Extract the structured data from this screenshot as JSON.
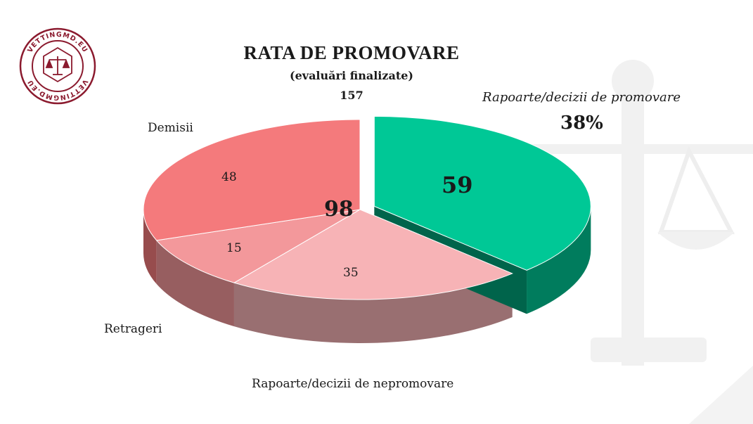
{
  "logo": {
    "ring_text": "VETTINGMD.EU",
    "color": "#8b1a2e"
  },
  "header": {
    "title": "RATA DE PROMOVARE",
    "subtitle": "(evaluări finalizate)",
    "total": "157"
  },
  "labels": {
    "promovare": "Rapoarte/decizii de promovare",
    "promovare_pct": "38%",
    "demisii": "Demisii",
    "retrageri": "Retrageri",
    "nepromovare": "Rapoarte/decizii de nepromovare",
    "nepromovare_total": "98"
  },
  "chart_data": {
    "type": "pie",
    "title": "RATA DE PROMOVARE",
    "subtitle": "(evaluări finalizate)",
    "total": 157,
    "slices": [
      {
        "label": "Rapoarte/decizii de promovare",
        "value": 59,
        "color": "#00c896",
        "exploded": true
      },
      {
        "label": "Rapoarte/decizii de nepromovare",
        "value": 35,
        "color": "#f7b3b6"
      },
      {
        "label": "Retrageri",
        "value": 15,
        "color": "#f3989b"
      },
      {
        "label": "Demisii",
        "value": 48,
        "color": "#f47a7c"
      }
    ],
    "group": {
      "label": "Rapoarte/decizii de nepromovare",
      "value": 98,
      "members": [
        "Demisii",
        "Retrageri",
        "Rapoarte/decizii de nepromovare"
      ]
    },
    "percent_label": "38%",
    "style": "3d"
  }
}
